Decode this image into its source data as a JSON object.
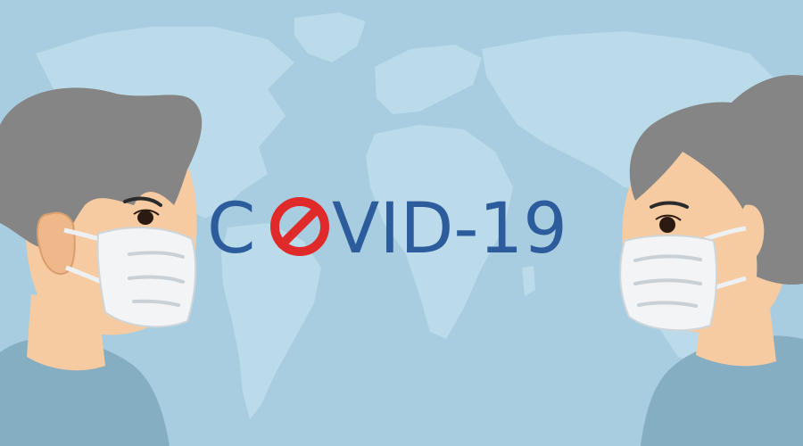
{
  "title": {
    "prefix": "C",
    "suffix": "VID-19",
    "symbol": "no-entry-sign-icon"
  },
  "colors": {
    "background": "#a9cde0",
    "map": "#bbdaea",
    "text": "#2d5c9c",
    "symbol": "#e02a2a",
    "skin": "#f6cba1",
    "hair": "#858585",
    "mask": "#f2f4f5",
    "shirt": "#86aec2"
  }
}
